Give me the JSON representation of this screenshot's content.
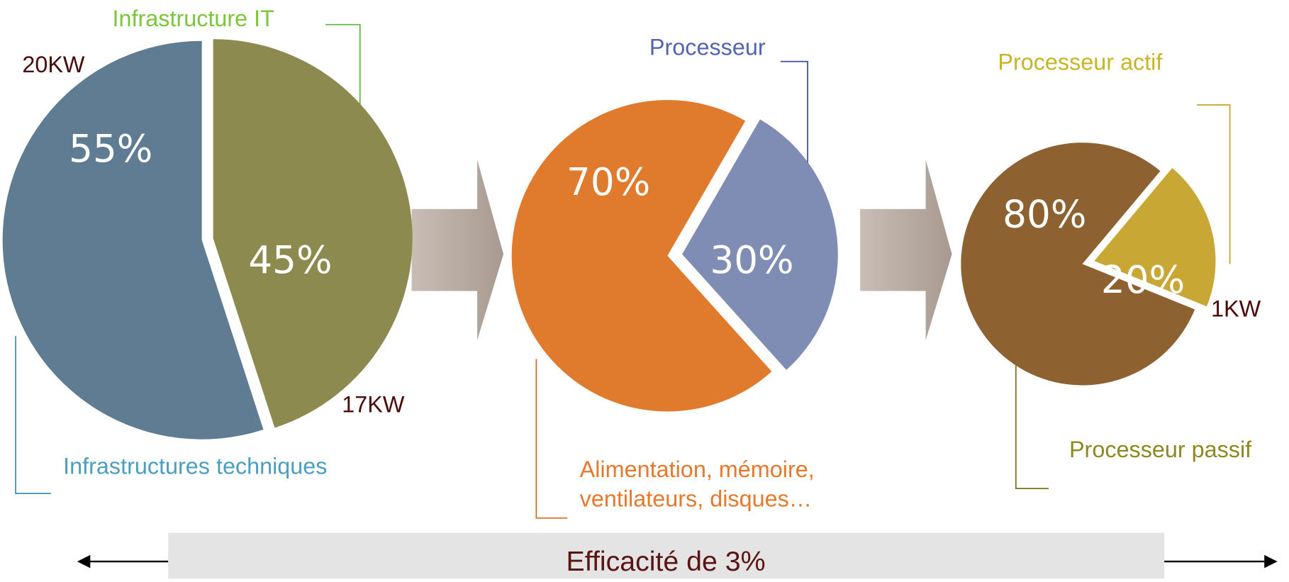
{
  "chart_data": [
    {
      "type": "pie",
      "categories": [
        "Infrastructures techniques",
        "Infrastructure IT"
      ],
      "values": [
        55,
        45
      ],
      "value_labels": [
        "55%",
        "45%"
      ],
      "colors": [
        "#5f7c93",
        "#8c8a4f"
      ],
      "label_colors": [
        "#4a9ec0",
        "#7cc63c"
      ],
      "annotations": [
        "20KW",
        "17KW"
      ]
    },
    {
      "type": "pie",
      "categories": [
        "Alimentation, mémoire, ventilateurs, disques…",
        "Processeur"
      ],
      "values": [
        70,
        30
      ],
      "value_labels": [
        "70%",
        "30%"
      ],
      "colors": [
        "#e07a2c",
        "#7f8db5"
      ],
      "label_colors": [
        "#e8782a",
        "#5262b4"
      ],
      "annotations": []
    },
    {
      "type": "pie",
      "categories": [
        "Processeur passif",
        "Processeur actif"
      ],
      "values": [
        80,
        20
      ],
      "value_labels": [
        "80%",
        "20%"
      ],
      "colors": [
        "#8e6230",
        "#c9a735"
      ],
      "label_colors": [
        "#8c8a1e",
        "#c9b424"
      ],
      "annotations": [
        "1KW"
      ]
    }
  ],
  "banner": "Efficacité de 3%"
}
